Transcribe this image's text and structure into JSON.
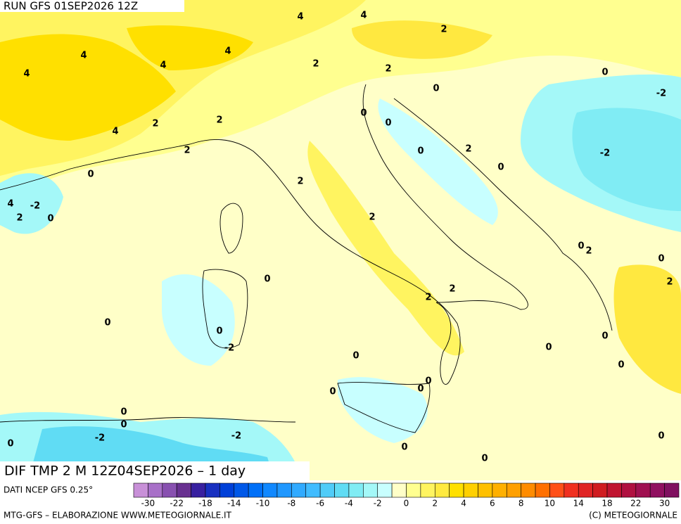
{
  "header": {
    "run": "RUN GFS 01SEP2026 12Z"
  },
  "map_title": "DIF TMP 2 M 12Z04SEP2026 – 1 day",
  "source": "DATI NCEP GFS 0.25°",
  "colorbar": {
    "colors": [
      "#c890d8",
      "#a870c8",
      "#8850b0",
      "#683090",
      "#3820a0",
      "#1830c0",
      "#0040d8",
      "#0058e8",
      "#0070f8",
      "#1088ff",
      "#2098ff",
      "#30aaff",
      "#40bcff",
      "#50ccf8",
      "#60dcf4",
      "#80ecf4",
      "#a4f8f8",
      "#c8ffff",
      "#ffffc8",
      "#ffff90",
      "#fff460",
      "#ffea40",
      "#ffe000",
      "#ffd000",
      "#ffc000",
      "#ffb000",
      "#ffa000",
      "#ff8c00",
      "#ff7000",
      "#ff5018",
      "#f03020",
      "#e02424",
      "#d01c20",
      "#c01430",
      "#b01040",
      "#a01050",
      "#901060",
      "#801060"
    ],
    "labels": [
      -30,
      -22,
      -18,
      -14,
      -10,
      -8,
      -6,
      -4,
      -2,
      0,
      2,
      4,
      6,
      8,
      10,
      14,
      18,
      22,
      30
    ]
  },
  "contour_labels": [
    4,
    4,
    2,
    4,
    4,
    4,
    4,
    2,
    2,
    0,
    0,
    -2,
    2,
    2,
    4,
    0,
    0,
    2,
    0,
    2,
    -2,
    0,
    0,
    2,
    4,
    -2,
    2,
    0,
    2,
    0,
    2,
    0,
    0,
    2,
    2,
    2,
    0,
    0,
    0,
    -2,
    0,
    0,
    0,
    0,
    0,
    0,
    0,
    0,
    -2,
    -2,
    0,
    0,
    0,
    0
  ],
  "footer": {
    "credit": "MTG-GFS – ELABORAZIONE WWW.METEOGIORNALE.IT",
    "copyright": "(C) METEOGIORNALE"
  }
}
